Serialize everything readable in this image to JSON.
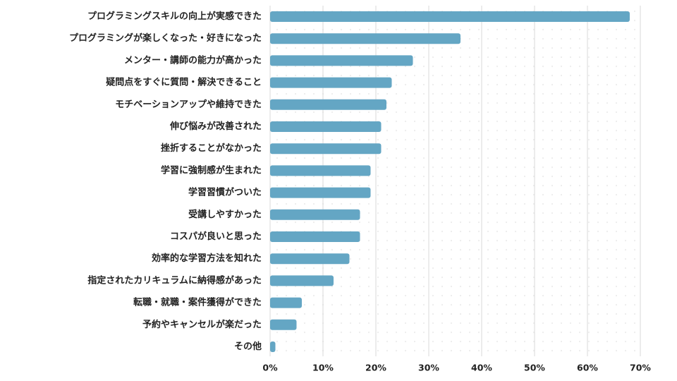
{
  "chart_data": {
    "type": "bar",
    "orientation": "horizontal",
    "title": "",
    "xlabel": "",
    "ylabel": "",
    "categories": [
      "プログラミングスキルの向上が実感できた",
      "プログラミングが楽しくなった・好きになった",
      "メンター・講師の能力が高かった",
      "疑問点をすぐに質問・解決できること",
      "モチベーションアップや維持できた",
      "伸び悩みが改善された",
      "挫折することがなかった",
      "学習に強制感が生まれた",
      "学習習慣がついた",
      "受講しやすかった",
      "コスパが良いと思った",
      "効率的な学習方法を知れた",
      "指定されたカリキュラムに納得感があった",
      "転職・就職・案件獲得ができた",
      "予約やキャンセルが楽だった",
      "その他"
    ],
    "values": [
      68,
      36,
      27,
      23,
      22,
      21,
      21,
      19,
      19,
      17,
      17,
      15,
      12,
      6,
      5,
      1
    ],
    "xlim": [
      0,
      70
    ],
    "x_ticks": [
      "0%",
      "10%",
      "20%",
      "30%",
      "40%",
      "50%",
      "60%",
      "70%"
    ],
    "grid": "vertical",
    "legend": "none",
    "colors": {
      "bar": "#64a6c4",
      "grid": "#d9d9d9",
      "dot_pattern": "#ececec",
      "text": "#222222"
    }
  }
}
